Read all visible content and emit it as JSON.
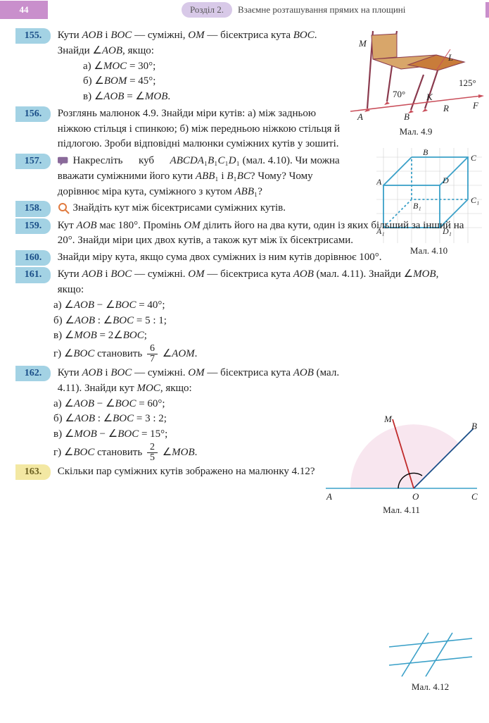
{
  "page_number": "44",
  "section_pill": "Розділ 2.",
  "section_title": "Взаємне розташування прямих на площині",
  "p155": {
    "num": "155.",
    "text": "Кути <span class='em'>AOB</span> і <span class='em'>BOC</span> — суміжні, <span class='em'>OM</span> — бісектриса кута <span class='em'>BOC</span>. Знайди ∠<span class='em'>AOB</span>, якщо:",
    "a": "а) ∠<span class='em'>MOC</span> = 30°;",
    "b": "б) ∠<span class='em'>BOM</span> = 45°;",
    "c": "в) ∠<span class='em'>AOB</span> = ∠<span class='em'>MOB</span>."
  },
  "p156": {
    "num": "156.",
    "text": "Розглянь малюнок 4.9. Знайди міри кутів: а) між задньою ніжкою стільця і спинкою; б) між передньою ніжкою стільця й підлогою. Зроби відповідні малюнки суміжних кутів у зошиті."
  },
  "p157": {
    "num": "157.",
    "t1": "Накресліть",
    "t2": "куб",
    "t3": "<span class='em'>ABCDA</span>₁<span class='em'>B</span>₁<span class='em'>C</span>₁<span class='em'>D</span>₁",
    "rest": "(мал. 4.10). Чи можна вважати суміжними його кути <span class='em'>ABB</span>₁ і <span class='em'>B</span>₁<span class='em'>BC</span>? Чому? Чому дорівнює міра кута, суміжного з кутом <span class='em'>ABB</span>₁?"
  },
  "p158": {
    "num": "158.",
    "text": "Знайдіть кут між бісектрисами суміжних кутів."
  },
  "p159": {
    "num": "159.",
    "text": "Кут <span class='em'>AOB</span> має 180°. Промінь <span class='em'>OM</span> ділить його на два кути, один із яких більший за інший на 20°. Знайди міри цих двох кутів, а також кут між їх бісектрисами."
  },
  "p160": {
    "num": "160.",
    "text": "Знайди міру кута, якщо сума двох суміжних із ним кутів дорівнює 100°."
  },
  "p161": {
    "num": "161.",
    "text": "Кути <span class='em'>AOB</span> і <span class='em'>BOC</span> — суміжні. <span class='em'>OM</span> — бісектриса кута <span class='em'>AOB</span> (мал. 4.11). Знайди ∠<span class='em'>MOB</span>, якщо:",
    "a": "а) ∠<span class='em'>AOB</span> − ∠<span class='em'>BOC</span> = 40°;",
    "b": "б) ∠<span class='em'>AOB</span> : ∠<span class='em'>BOC</span> = 5 : 1;",
    "c": "в) ∠<span class='em'>MOB</span> = 2∠<span class='em'>BOC</span>;",
    "d_pre": "г) ∠<span class='em'>BOC</span> становить ",
    "d_post": " ∠<span class='em'>AOM</span>.",
    "frac_n": "6",
    "frac_d": "7"
  },
  "p162": {
    "num": "162.",
    "text": "Кути <span class='em'>AOB</span> і <span class='em'>BOC</span> — суміжні. <span class='em'>OM</span> — бісектриса кута <span class='em'>AOB</span> (мал. 4.11). Знайди кут <span class='em'>MOC</span>, якщо:",
    "a": "а) ∠<span class='em'>AOB</span> − ∠<span class='em'>BOC</span> = 60°;",
    "b": "б) ∠<span class='em'>AOB</span> : ∠<span class='em'>BOC</span> = 3 : 2;",
    "c": "в) ∠<span class='em'>MOB</span> − ∠<span class='em'>BOC</span> = 15°;",
    "d_pre": "г) ∠<span class='em'>BOC</span> становить ",
    "d_post": " ∠<span class='em'>MOB</span>.",
    "frac_n": "2",
    "frac_d": "5"
  },
  "p163": {
    "num": "163.",
    "text": "Скільки пар суміжних кутів зображено на малюнку 4.12?"
  },
  "fig49": {
    "label": "Мал. 4.9",
    "angle_70": "70°",
    "angle_125": "125°",
    "M": "M",
    "A": "A",
    "B": "B",
    "K": "K",
    "L": "L",
    "R": "R",
    "F": "F",
    "colors": {
      "chair": "#c87c3a",
      "legs": "#8a3a4e",
      "floor": "#c94e5a"
    }
  },
  "fig410": {
    "label": "Мал. 4.10",
    "A": "A",
    "B": "B",
    "C": "C",
    "D": "D",
    "A1": "A₁",
    "B1": "B₁",
    "C1": "C₁",
    "D1": "D₁",
    "colors": {
      "grid": "#d0d0d0",
      "cube": "#3aa0c8"
    }
  },
  "fig411": {
    "label": "Мал. 4.11",
    "A": "A",
    "B": "B",
    "C": "C",
    "M": "M",
    "O": "O",
    "colors": {
      "line": "#3aa0c8",
      "OM": "#c02a2a",
      "OB": "#1a4e88",
      "sector": "#f5dbe8",
      "arc": "#000"
    }
  },
  "fig412": {
    "label": "Мал. 4.12",
    "colors": {
      "line": "#3aa0c8"
    }
  }
}
